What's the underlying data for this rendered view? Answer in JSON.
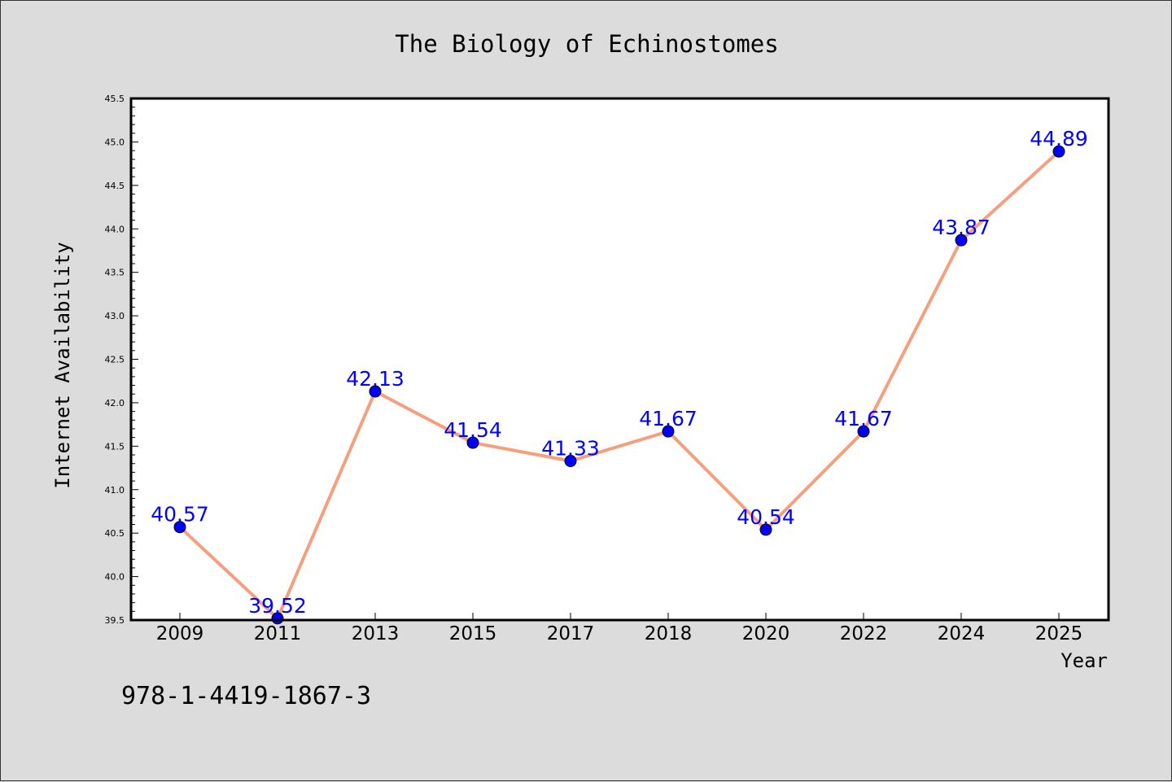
{
  "chart_data": {
    "type": "line",
    "title": "The Biology of Echinostomes",
    "xlabel": "Year",
    "ylabel": "Internet Availability",
    "categories": [
      "2009",
      "2011",
      "2013",
      "2015",
      "2017",
      "2018",
      "2020",
      "2022",
      "2024",
      "2025"
    ],
    "series": [
      {
        "values": [
          40.57,
          39.52,
          42.13,
          41.54,
          41.33,
          41.67,
          40.54,
          41.67,
          43.87,
          44.89
        ],
        "labels": [
          "40.57",
          "39.52",
          "42.13",
          "41.54",
          "41.33",
          "41.67",
          "40.54",
          "41.67",
          "43.87",
          "44.89"
        ]
      }
    ],
    "ylim": [
      39.5,
      45.5
    ],
    "yticks": [
      "39.5",
      "40.0",
      "40.5",
      "41.0",
      "41.5",
      "42.0",
      "42.5",
      "43.0",
      "43.5",
      "44.0",
      "44.5",
      "45.0",
      "45.5"
    ],
    "grid": false,
    "colors": {
      "line": "#f4a07e",
      "marker": "#0000ff",
      "label": "#0000ff",
      "background": "#dcdcdc",
      "plot_bg": "#ffffff"
    }
  },
  "footer_text": "978-1-4419-1867-3"
}
